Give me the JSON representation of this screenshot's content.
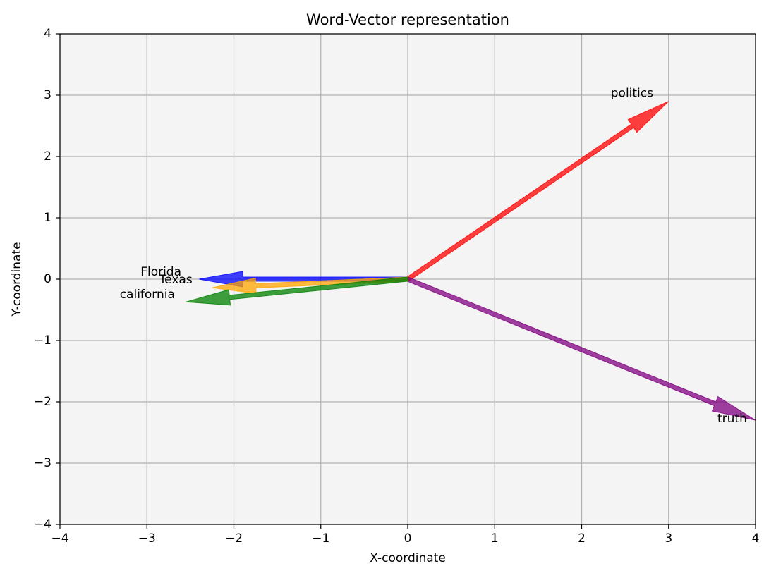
{
  "chart_data": {
    "type": "vector",
    "title": "Word-Vector representation",
    "x_label": "X-coordinate",
    "y_label": "Y-coordinate",
    "xlim": [
      -4,
      4
    ],
    "ylim": [
      -4,
      4
    ],
    "xticks": [
      {
        "value": -4,
        "label": "−4"
      },
      {
        "value": -3,
        "label": "−3"
      },
      {
        "value": -2,
        "label": "−2"
      },
      {
        "value": -1,
        "label": "−1"
      },
      0,
      1,
      2,
      3,
      4
    ],
    "yticks": [
      {
        "value": -4,
        "label": "−4"
      },
      {
        "value": -3,
        "label": "−3"
      },
      {
        "value": -2,
        "label": "−2"
      },
      {
        "value": -1,
        "label": "−1"
      },
      0,
      1,
      2,
      3,
      4
    ],
    "grid": true,
    "series": [
      {
        "name": "politics",
        "color": "#ff0000",
        "x": 3.0,
        "y": 2.9
      },
      {
        "name": "truth",
        "color": "#800080",
        "x": 4.0,
        "y": -2.3
      },
      {
        "name": "Florida",
        "color": "#0000ff",
        "x": -2.4,
        "y": 0.0
      },
      {
        "name": "Texas",
        "color": "#ffa500",
        "x": -2.25,
        "y": -0.14
      },
      {
        "name": "california",
        "color": "#008000",
        "x": -2.55,
        "y": -0.37
      }
    ]
  }
}
